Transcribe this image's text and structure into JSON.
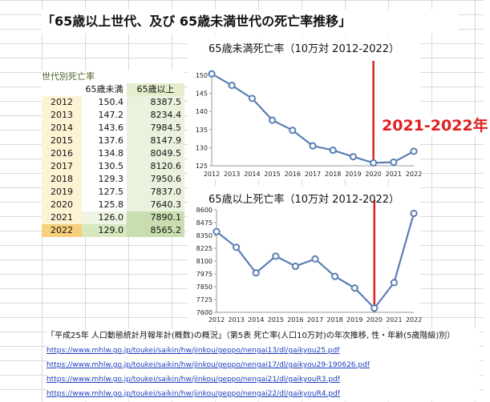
{
  "title": "「65歳以上世代、及び 65歳未満世代の死亡率推移」",
  "table": {
    "caption": "世代別死亡率",
    "headers": [
      "",
      "65歳未満",
      "65歳以上"
    ],
    "rows": [
      {
        "year": "2012",
        "under65": "150.4",
        "over65": "8387.5"
      },
      {
        "year": "2013",
        "under65": "147.2",
        "over65": "8234.4"
      },
      {
        "year": "2014",
        "under65": "143.6",
        "over65": "7984.5"
      },
      {
        "year": "2015",
        "under65": "137.6",
        "over65": "8147.9"
      },
      {
        "year": "2016",
        "under65": "134.8",
        "over65": "8049.5"
      },
      {
        "year": "2017",
        "under65": "130.5",
        "over65": "8120.6"
      },
      {
        "year": "2018",
        "under65": "129.3",
        "over65": "7950.6"
      },
      {
        "year": "2019",
        "under65": "127.5",
        "over65": "7837.0"
      },
      {
        "year": "2020",
        "under65": "125.8",
        "over65": "7640.3"
      },
      {
        "year": "2021",
        "under65": "126.0",
        "over65": "7890.1"
      },
      {
        "year": "2022",
        "under65": "129.0",
        "over65": "8565.2"
      }
    ]
  },
  "annotation": "2021-2022年",
  "colors": {
    "line": "#5b7fb4",
    "marker": "#5b7fb4",
    "vline": "#e02020",
    "annotation": "#e02020"
  },
  "chart_data": [
    {
      "type": "line",
      "title": "65歳未満死亡率（10万対 2012-2022）",
      "x": [
        2012,
        2013,
        2014,
        2015,
        2016,
        2017,
        2018,
        2019,
        2020,
        2021,
        2022
      ],
      "series": [
        {
          "values": [
            150.4,
            147.2,
            143.6,
            137.6,
            134.8,
            130.5,
            129.3,
            127.5,
            125.8,
            126.0,
            129.0
          ]
        }
      ],
      "ylim": [
        125,
        150
      ],
      "yticks": [
        125,
        130,
        135,
        140,
        145,
        150
      ],
      "vline_x": 2020,
      "grid": false
    },
    {
      "type": "line",
      "title": "65歳以上死亡率（10万対 2012-2022）",
      "x": [
        2012,
        2013,
        2014,
        2015,
        2016,
        2017,
        2018,
        2019,
        2020,
        2021,
        2022
      ],
      "series": [
        {
          "values": [
            8387.5,
            8234.4,
            7984.5,
            8147.9,
            8049.5,
            8120.6,
            7950.6,
            7837.0,
            7640.3,
            7890.1,
            8565.2
          ]
        }
      ],
      "ylim": [
        7600,
        8600
      ],
      "yticks": [
        7600,
        7725,
        7850,
        7975,
        8100,
        8225,
        8350,
        8475,
        8600
      ],
      "vline_x": 2020,
      "grid": false
    }
  ],
  "sources": {
    "title": "「平成25年 人口動態統計月報年計(概数)の概況」（第5表 死亡率(人口10万対)の年次推移, 性・年齢(5歳階級)別）",
    "links": [
      "https://www.mhlw.go.jp/toukei/saikin/hw/jinkou/geppo/nengai13/dl/gaikyou25.pdf",
      "https://www.mhlw.go.jp/toukei/saikin/hw/jinkou/geppo/nengai17/dl/gaikyou29-190626.pdf",
      "https://www.mhlw.go.jp/toukei/saikin/hw/jinkou/geppo/nengai21/dl/gaikyouR3.pdf",
      "https://www.mhlw.go.jp/toukei/saikin/hw/jinkou/geppo/nengai22/dl/gaikyouR4.pdf"
    ]
  }
}
